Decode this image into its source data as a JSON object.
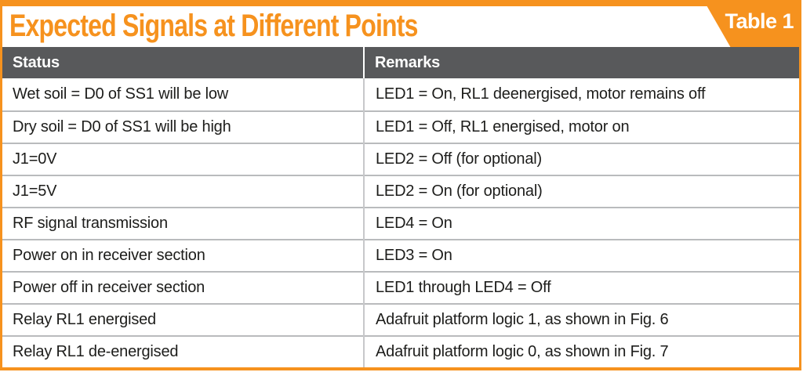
{
  "table": {
    "title": "Expected Signals at Different Points",
    "badge": "Table 1",
    "columns": [
      "Status",
      "Remarks"
    ],
    "rows": [
      {
        "status": "Wet soil = D0 of SS1 will be low",
        "remarks": "LED1 = On, RL1 deenergised, motor remains off"
      },
      {
        "status": "Dry soil = D0 of SS1 will be high",
        "remarks": "LED1 = Off, RL1 energised, motor on"
      },
      {
        "status": "J1=0V",
        "remarks": "LED2 = Off (for optional)"
      },
      {
        "status": "J1=5V",
        "remarks": "LED2 = On (for optional)"
      },
      {
        "status": "RF signal transmission",
        "remarks": "LED4 = On"
      },
      {
        "status": "Power on in receiver section",
        "remarks": "LED3 = On"
      },
      {
        "status": "Power off in receiver section",
        "remarks": "LED1 through LED4 = Off"
      },
      {
        "status": "Relay RL1 energised",
        "remarks": "Adafruit platform logic 1, as shown in Fig. 6"
      },
      {
        "status": "Relay RL1 de-energised",
        "remarks": "Adafruit platform logic 0, as shown in Fig. 7"
      }
    ],
    "colors": {
      "accent_orange": "#F6921E",
      "header_bg": "#58595B",
      "header_text": "#FFFFFF",
      "body_text": "#1D1D1B",
      "row_line": "#B9BBBD"
    }
  }
}
